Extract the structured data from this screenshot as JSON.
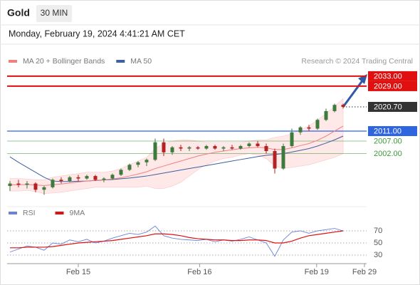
{
  "header": {
    "title": "Gold",
    "timeframe": "30 MIN",
    "datetime": "Monday, February 19, 2024 4:41:21 AM CET"
  },
  "chart_data": {
    "type": "candlestick",
    "credit": "Research © 2024 Trading Central",
    "xlim": [
      -0.33,
      41.75
    ],
    "xticks": [
      {
        "value": 8,
        "label": "Feb 15"
      },
      {
        "value": 22.2,
        "label": "Feb 16"
      },
      {
        "value": 35.9,
        "label": "Feb 19"
      },
      {
        "value": 41.5,
        "label": "Feb 29"
      }
    ],
    "ylim": [
      1981.6,
      2036.4
    ],
    "up_color": "#3d7a3d",
    "down_color": "#b22222",
    "open": [
      1989,
      1990,
      1989.5,
      1990,
      1987.5,
      1988.5,
      1991.5,
      1991,
      1992.5,
      1992,
      1993,
      1991.5,
      1992,
      1993.5,
      1995.5,
      1997.5,
      1998.5,
      1999.5,
      2006.5,
      2002.5,
      2004.5,
      2004,
      2004.5,
      2004,
      2005,
      2004,
      2004.5,
      2004,
      2005,
      2006,
      2005,
      2003,
      1996,
      2005,
      2010.5,
      2012.5,
      2012,
      2015.5,
      2019,
      2021.5
    ],
    "high": [
      1991,
      1991.5,
      1991,
      1990.5,
      1989,
      1992,
      1992.5,
      1993,
      1993.5,
      1993.5,
      1993.5,
      1992.5,
      1994,
      1996,
      1998,
      1999,
      2000,
      2008,
      2008,
      2005,
      2005.5,
      2005,
      2005,
      2005.5,
      2005.5,
      2005,
      2005.5,
      2005.5,
      2006.5,
      2007,
      2006,
      2004,
      2006,
      2012,
      2013,
      2013.5,
      2016,
      2020,
      2022,
      2022
    ],
    "low": [
      1987,
      1988.5,
      1988,
      1986.5,
      1985.5,
      1988,
      1990,
      1990.5,
      1991,
      1991.5,
      1991,
      1990.5,
      1991.5,
      1993,
      1995,
      1996.5,
      1997,
      1999,
      2001,
      2001.5,
      2003,
      2003,
      2003.5,
      2003.5,
      2003.5,
      2003,
      2003.5,
      2003.5,
      2004.5,
      2004.5,
      2002,
      1994,
      1995.5,
      2004.5,
      2009.5,
      2011,
      2011.5,
      2015,
      2018.5,
      2020
    ],
    "close": [
      1990,
      1989.5,
      1990,
      1987.5,
      1988.5,
      1991.5,
      1991,
      1992.5,
      1992,
      1993,
      1991.5,
      1992,
      1993.5,
      1995.5,
      1997.5,
      1998.5,
      1999.5,
      2006.5,
      2002.5,
      2004.5,
      2004,
      2004.5,
      2004,
      2005,
      2004,
      2004.5,
      2004,
      2005,
      2006,
      2005,
      2003,
      1996,
      2005,
      2010.5,
      2012.5,
      2012,
      2015.5,
      2019,
      2021.5,
      2020.7
    ],
    "series": [
      {
        "name": "MA 20 + Bollinger Bands",
        "color": "#f08080",
        "values": [
          1989.5,
          1989.5,
          1989.6,
          1989.4,
          1989.2,
          1989.5,
          1989.8,
          1990.2,
          1990.6,
          1991,
          1991.3,
          1991.5,
          1991.8,
          1992.3,
          1993,
          1993.8,
          1994.7,
          1996,
          1997,
          1998,
          1999,
          2000,
          2001,
          2001.8,
          2002.5,
          2003,
          2003.5,
          2004,
          2004.3,
          2004.5,
          2004.3,
          2003.6,
          2003.6,
          2004.3,
          2005.2,
          2006,
          2007.3,
          2009,
          2011,
          2013
        ],
        "upper": [
          1992,
          1992,
          1991.8,
          1991.5,
          1991.5,
          1992.5,
          1993,
          1993.5,
          1994,
          1994.5,
          1994.5,
          1994.5,
          1995,
          1996,
          1997.5,
          1999,
          2000.5,
          2004,
          2006,
          2007,
          2007.5,
          2007.5,
          2007,
          2006.5,
          2006.5,
          2006.5,
          2006.5,
          2006.5,
          2007,
          2007.5,
          2007.5,
          2008.5,
          2009,
          2010,
          2011.5,
          2013,
          2015.5,
          2018,
          2021,
          2024
        ],
        "lower": [
          1987,
          1987,
          1987.2,
          1986.8,
          1986,
          1986.2,
          1986.5,
          1987,
          1987.5,
          1988,
          1988.5,
          1988.5,
          1988.5,
          1988.5,
          1988.5,
          1988.5,
          1989,
          1988,
          1988,
          1989,
          1990.5,
          1993,
          1995.5,
          1997.5,
          1999,
          2000,
          2000.5,
          2001.5,
          2002,
          2001.5,
          2000,
          1997,
          1996,
          1996.5,
          1997,
          1997.5,
          1998.5,
          1999.5,
          2000.5,
          2002
        ]
      },
      {
        "name": "MA 50",
        "color": "#3f5f9f",
        "values": [
          2000.7,
          1998.5,
          1996.5,
          1994.5,
          1992.5,
          1991,
          1990.8,
          1990.8,
          1990.9,
          1991,
          1991.2,
          1991.4,
          1991.6,
          1991.9,
          1992.2,
          1992.6,
          1993,
          1993.6,
          1994.2,
          1994.8,
          1995.4,
          1996,
          1996.6,
          1997.2,
          1997.8,
          1998.4,
          1999,
          1999.6,
          2000.2,
          2000.8,
          2001.3,
          2001.6,
          2002,
          2002.6,
          2003.3,
          2004,
          2005,
          2006.2,
          2007.5,
          2009
        ]
      }
    ],
    "levels": [
      {
        "value": 2033,
        "label": "2033.00",
        "color": "#e01010",
        "box": true
      },
      {
        "value": 2029,
        "label": "2029.00",
        "color": "#e01010",
        "box": true
      },
      {
        "value": 2020.7,
        "label": "2020.70",
        "color": "#333333",
        "box": true,
        "dotted": true
      },
      {
        "value": 2011,
        "label": "2011.00",
        "color": "#2f66e0",
        "box": true
      },
      {
        "value": 2007,
        "label": "2007.00",
        "color": "#3a9a3a",
        "box": false
      },
      {
        "value": 2002,
        "label": "2002.00",
        "color": "#3a9a3a",
        "box": false
      }
    ],
    "rsi": {
      "type": "line",
      "ylim": [
        10,
        90
      ],
      "yticks": [
        70,
        50,
        30
      ],
      "series": [
        {
          "name": "RSI",
          "color": "#6a82d8",
          "values": [
            35,
            40,
            45,
            43,
            38,
            50,
            48,
            55,
            52,
            56,
            50,
            53,
            58,
            62,
            66,
            64,
            68,
            78,
            62,
            58,
            56,
            55,
            54,
            56,
            52,
            55,
            53,
            56,
            60,
            55,
            50,
            28,
            55,
            68,
            70,
            66,
            70,
            72,
            74,
            70
          ]
        },
        {
          "name": "9MA",
          "color": "#dd1111",
          "values": [
            42,
            42,
            43,
            43,
            43,
            44,
            46,
            48,
            50,
            51,
            52,
            53,
            54,
            56,
            58,
            60,
            62,
            65,
            65,
            64,
            62,
            59,
            57,
            56,
            55,
            55,
            54,
            54,
            55,
            55,
            54,
            50,
            50,
            53,
            58,
            62,
            64,
            66,
            68,
            70
          ]
        }
      ]
    }
  }
}
